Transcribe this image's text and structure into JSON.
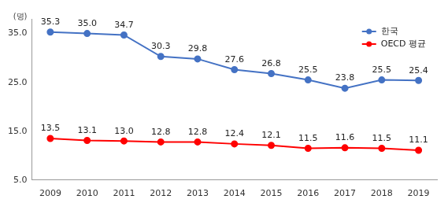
{
  "chart_data": {
    "type": "line",
    "ylabel": "(명)",
    "categories": [
      "2009",
      "2010",
      "2011",
      "2012",
      "2013",
      "2014",
      "2015",
      "2016",
      "2017",
      "2018",
      "2019"
    ],
    "series": [
      {
        "name": "한국",
        "color": "#4472c4",
        "marker": "circle",
        "line_style": "solid",
        "values": [
          35.3,
          35.0,
          34.7,
          30.3,
          29.8,
          27.6,
          26.8,
          25.5,
          23.8,
          25.5,
          25.4
        ],
        "value_labels": [
          "35.3",
          "35.0",
          "34.7",
          "30.3",
          "29.8",
          "27.6",
          "26.8",
          "25.5",
          "23.8",
          "25.5",
          "25.4"
        ]
      },
      {
        "name": "OECD 평균",
        "color": "#ff0000",
        "marker": "circle",
        "line_style": "solid",
        "values": [
          13.5,
          13.1,
          13.0,
          12.8,
          12.8,
          12.4,
          12.1,
          11.5,
          11.6,
          11.5,
          11.1
        ],
        "value_labels": [
          "13.5",
          "13.1",
          "13.0",
          "12.8",
          "12.8",
          "12.4",
          "12.1",
          "11.5",
          "11.6",
          "11.5",
          "11.1"
        ]
      }
    ],
    "ylim": [
      5,
      38
    ],
    "yticks": [
      {
        "value": 5,
        "label": "5.0"
      },
      {
        "value": 15,
        "label": "15.0"
      },
      {
        "value": 25,
        "label": "25.0"
      },
      {
        "value": 35,
        "label": "35.0"
      }
    ],
    "grid": false,
    "legend": "upper right",
    "data_labels": true
  }
}
